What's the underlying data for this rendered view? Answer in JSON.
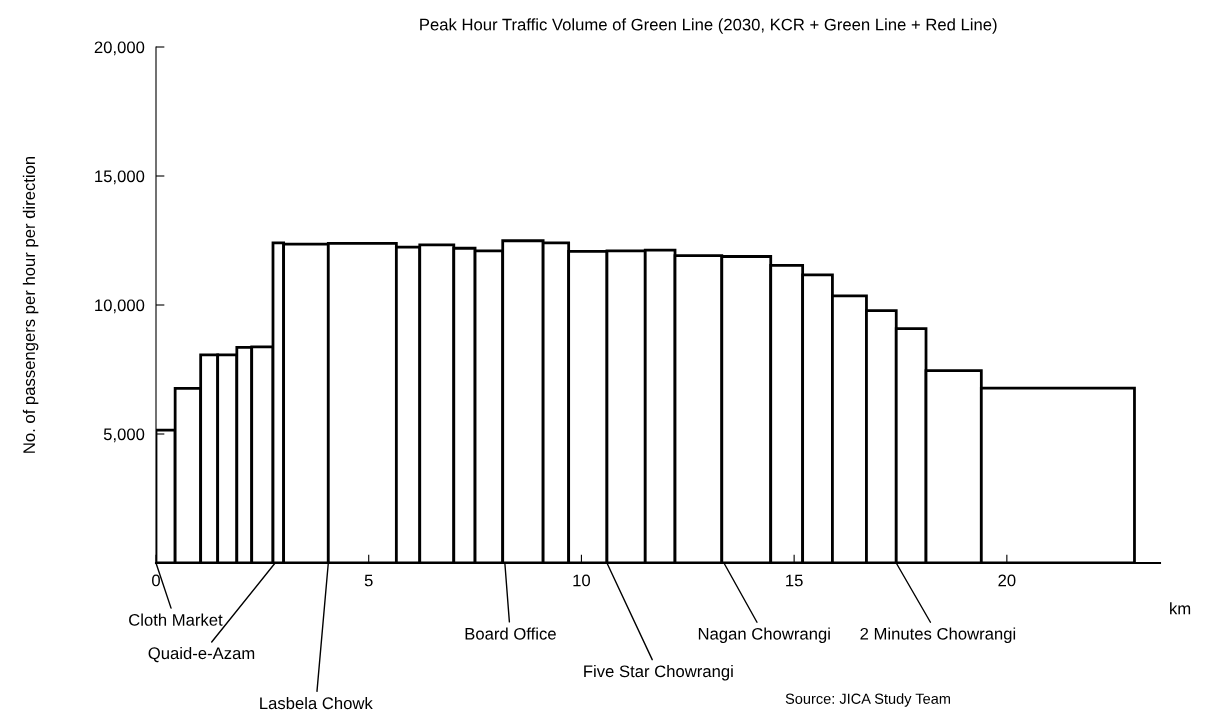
{
  "chart_data": {
    "type": "histogram",
    "title": "Peak Hour Traffic Volume of Green Line (2030, KCR + Green Line + Red Line)",
    "ylabel": "No. of passengers per hour per direction",
    "xlabel": "km",
    "bins": [
      0,
      0.45,
      1.05,
      1.45,
      1.9,
      2.25,
      2.75,
      3.0,
      4.05,
      5.65,
      6.2,
      7.0,
      7.5,
      8.15,
      9.1,
      9.7,
      10.6,
      11.5,
      12.2,
      13.3,
      14.45,
      15.2,
      15.9,
      16.7,
      17.4,
      18.1,
      19.4,
      23.0
    ],
    "values": [
      5150,
      6770,
      8070,
      8070,
      8360,
      8380,
      12410,
      12360,
      12390,
      12240,
      12330,
      12200,
      12100,
      12490,
      12410,
      12080,
      12100,
      12130,
      11910,
      11880,
      11540,
      11170,
      10350,
      9780,
      9080,
      7460,
      6780
    ],
    "color": "#ffffff",
    "xlim": [
      0,
      23.6
    ],
    "xticks": [
      0,
      5,
      10,
      15,
      20
    ],
    "ylim": [
      0,
      20000
    ],
    "yticks": [
      {
        "value": 5000,
        "label": "5,000"
      },
      {
        "value": 10000,
        "label": "10,000"
      },
      {
        "value": 15000,
        "label": "15,000"
      },
      {
        "value": 20000,
        "label": "20,000"
      }
    ],
    "grid": false,
    "legend": false,
    "annotations": [
      {
        "text": "Cloth Market",
        "x": 0,
        "y": 0
      },
      {
        "text": "Quaid-e-Azam",
        "x": 2.8,
        "y": 0
      },
      {
        "text": "Lasbela Chowk",
        "x": 4.05,
        "y": 0
      },
      {
        "text": "Board Office",
        "x": 8.2,
        "y": 0
      },
      {
        "text": "Five Star Chowrangi",
        "x": 10.6,
        "y": 0
      },
      {
        "text": "Nagan Chowrangi",
        "x": 13.35,
        "y": 0
      },
      {
        "text": "2 Minutes Chowrangi",
        "x": 17.4,
        "y": 0
      },
      "Source: JICA Study Team"
    ]
  }
}
